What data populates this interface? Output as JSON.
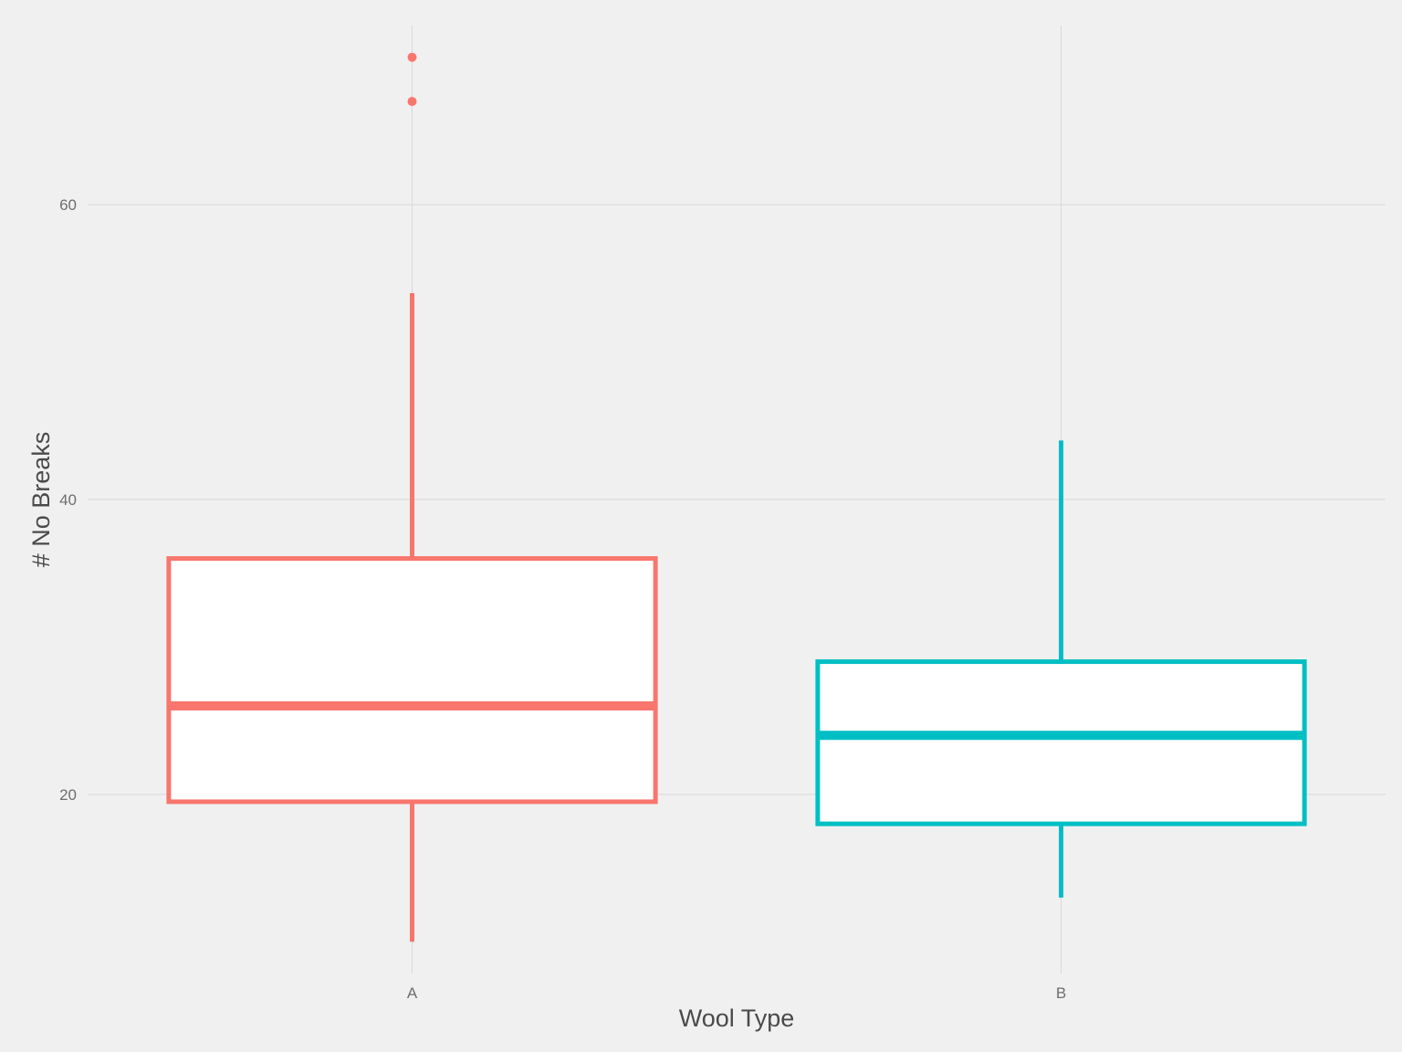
{
  "chart_data": {
    "type": "boxplot",
    "title": "",
    "xlabel": "Wool Type",
    "ylabel": "# No Breaks",
    "categories": [
      "A",
      "B"
    ],
    "ylim": [
      7.85,
      72.15
    ],
    "yticks": [
      20,
      40,
      60
    ],
    "grid": true,
    "legend": "none",
    "boxes": [
      {
        "category": "A",
        "min": 10,
        "q1": 19.5,
        "median": 26,
        "q3": 36,
        "max": 54,
        "outliers": [
          67,
          70
        ],
        "color": "#F8766D"
      },
      {
        "category": "B",
        "min": 13,
        "q1": 18,
        "median": 24,
        "q3": 29,
        "max": 44,
        "outliers": [],
        "color": "#00BFC4"
      }
    ],
    "colors": {
      "background": "#f0f0f0",
      "grid": "#d9d9d9",
      "box_fill": "#ffffff"
    }
  }
}
